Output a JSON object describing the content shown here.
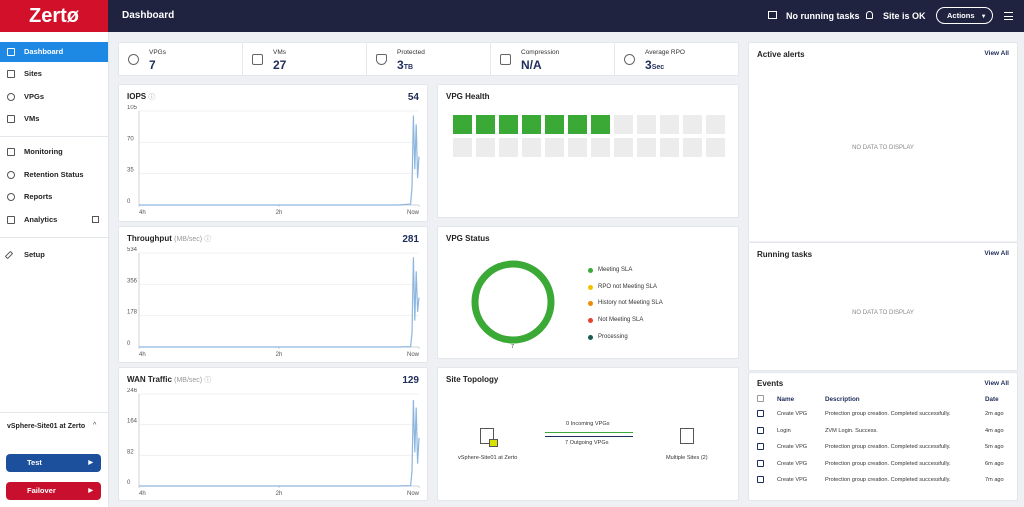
{
  "header": {
    "logo": "Zertø",
    "title": "Dashboard",
    "running_tasks": "No running tasks",
    "site_status": "Site is OK",
    "actions": "Actions"
  },
  "sidebar": {
    "items": [
      "Dashboard",
      "Sites",
      "VPGs",
      "VMs",
      "Monitoring",
      "Retention Status",
      "Reports",
      "Analytics",
      "Setup"
    ],
    "site": "vSphere-Site01 at Zerto",
    "test": "Test",
    "failover": "Failover"
  },
  "summary": [
    {
      "label": "VPGs",
      "value": 7
    },
    {
      "label": "VMs",
      "value": 27
    },
    {
      "label": "Protected",
      "value": 3,
      "unit": "TB"
    },
    {
      "label": "Compression",
      "value": "N/A"
    },
    {
      "label": "Average RPO",
      "value": 3,
      "unit": "Sec"
    }
  ],
  "charts": [
    {
      "type": "line",
      "title": "IOPS",
      "current": 54,
      "x": [
        -4,
        -3,
        -2,
        -1,
        -0.3,
        -0.12,
        -0.1,
        -0.08,
        -0.06,
        -0.04,
        -0.02,
        0
      ],
      "values": [
        0,
        0,
        0,
        0,
        0,
        1,
        20,
        100,
        40,
        90,
        30,
        54
      ],
      "xlim": [
        -4,
        0
      ],
      "xticks": [
        {
          "value": -4,
          "label": "4h"
        },
        {
          "value": -2,
          "label": "2h"
        },
        {
          "value": 0,
          "label": "Now"
        }
      ],
      "ylim": [
        0,
        105
      ],
      "yticks": [
        0,
        35,
        70,
        105
      ],
      "color": "#8db6df"
    },
    {
      "type": "line",
      "title": "Throughput",
      "unit": "(MB/sec)",
      "current": 281,
      "x": [
        -4,
        -3,
        -2,
        -1,
        -0.3,
        -0.12,
        -0.1,
        -0.08,
        -0.06,
        -0.04,
        -0.02,
        0
      ],
      "values": [
        0,
        0,
        0,
        0,
        0,
        2,
        80,
        510,
        150,
        430,
        200,
        281
      ],
      "xlim": [
        -4,
        0
      ],
      "xticks": [
        {
          "value": -4,
          "label": "4h"
        },
        {
          "value": -2,
          "label": "2h"
        },
        {
          "value": 0,
          "label": "Now"
        }
      ],
      "ylim": [
        0,
        534
      ],
      "yticks": [
        0,
        178,
        356,
        534
      ],
      "color": "#8db6df"
    },
    {
      "type": "line",
      "title": "WAN Traffic",
      "unit": "(MB/sec)",
      "current": 129,
      "x": [
        -4,
        -3,
        -2,
        -1,
        -0.3,
        -0.12,
        -0.1,
        -0.08,
        -0.06,
        -0.04,
        -0.02,
        0
      ],
      "values": [
        0,
        0,
        0,
        0,
        0,
        1,
        40,
        230,
        90,
        210,
        60,
        129
      ],
      "xlim": [
        -4,
        0
      ],
      "xticks": [
        {
          "value": -4,
          "label": "4h"
        },
        {
          "value": -2,
          "label": "2h"
        },
        {
          "value": 0,
          "label": "Now"
        }
      ],
      "ylim": [
        0,
        246
      ],
      "yticks": [
        0,
        82,
        164,
        246
      ],
      "color": "#8db6df"
    }
  ],
  "vpg_health": {
    "title": "VPG Health"
  },
  "vpg_status": {
    "title": "VPG Status",
    "total": 7,
    "legend": [
      {
        "name": "Meeting SLA",
        "color": "#3aa935"
      },
      {
        "name": "RPO not Meeting SLA",
        "color": "#f2c200"
      },
      {
        "name": "History not Meeting SLA",
        "color": "#f08a00"
      },
      {
        "name": "Not Meeting SLA",
        "color": "#e8412e"
      },
      {
        "name": "Processing",
        "color": "#1d5a52"
      }
    ]
  },
  "topology": {
    "title": "Site Topology",
    "incoming": "0 Incoming VPGs",
    "outgoing": "7 Outgoing VPGs",
    "local": "vSphere-Site01 at Zerto",
    "remote": "Multiple Sites (2)"
  },
  "alerts": {
    "title": "Active alerts",
    "view_all": "View All",
    "empty": "NO DATA TO DISPLAY"
  },
  "tasks": {
    "title": "Running tasks",
    "view_all": "View All",
    "empty": "NO DATA TO DISPLAY"
  },
  "events": {
    "title": "Events",
    "view_all": "View All",
    "columns": [
      "Name",
      "Description",
      "Date"
    ],
    "rows": [
      [
        "Create VPG",
        "Protection group creation. Completed successfully.",
        "2m ago"
      ],
      [
        "Login",
        "ZVM Login. Success.",
        "4m ago"
      ],
      [
        "Create VPG",
        "Protection group creation. Completed successfully.",
        "5m ago"
      ],
      [
        "Create VPG",
        "Protection group creation. Completed successfully.",
        "6m ago"
      ],
      [
        "Create VPG",
        "Protection group creation. Completed successfully.",
        "7m ago"
      ]
    ]
  }
}
